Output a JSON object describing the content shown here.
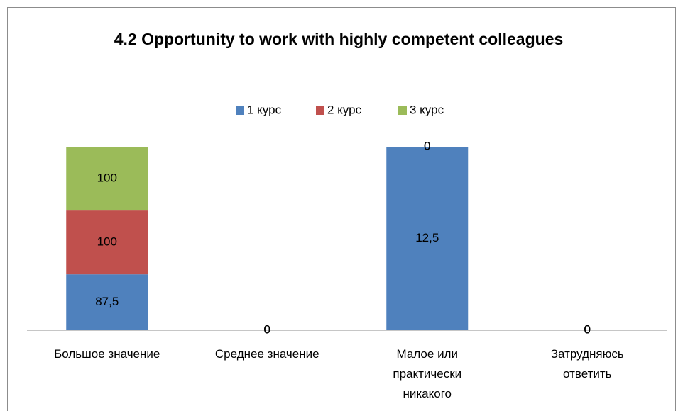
{
  "chart_data": {
    "type": "bar",
    "stacked": "percent",
    "title": "4.2 Opportunity to work with highly competent colleagues",
    "categories": [
      "Большое значение",
      "Среднее значение",
      "Малое или практически никакого",
      "Затрудняюсь ответить"
    ],
    "series": [
      {
        "name": "1 курс",
        "color": "#4f81bd",
        "values": [
          87.5,
          0,
          12.5,
          0
        ],
        "value_labels": [
          "87,5",
          "0",
          "12,5",
          "0"
        ]
      },
      {
        "name": "2 курс",
        "color": "#c0504d",
        "values": [
          100,
          0,
          0,
          0
        ],
        "value_labels": [
          "100",
          "0",
          "0",
          "0"
        ]
      },
      {
        "name": "3 курс",
        "color": "#9bbb59",
        "values": [
          100,
          0,
          0,
          0
        ],
        "value_labels": [
          "100",
          "0",
          "0",
          "0"
        ]
      }
    ],
    "legend": "top"
  }
}
